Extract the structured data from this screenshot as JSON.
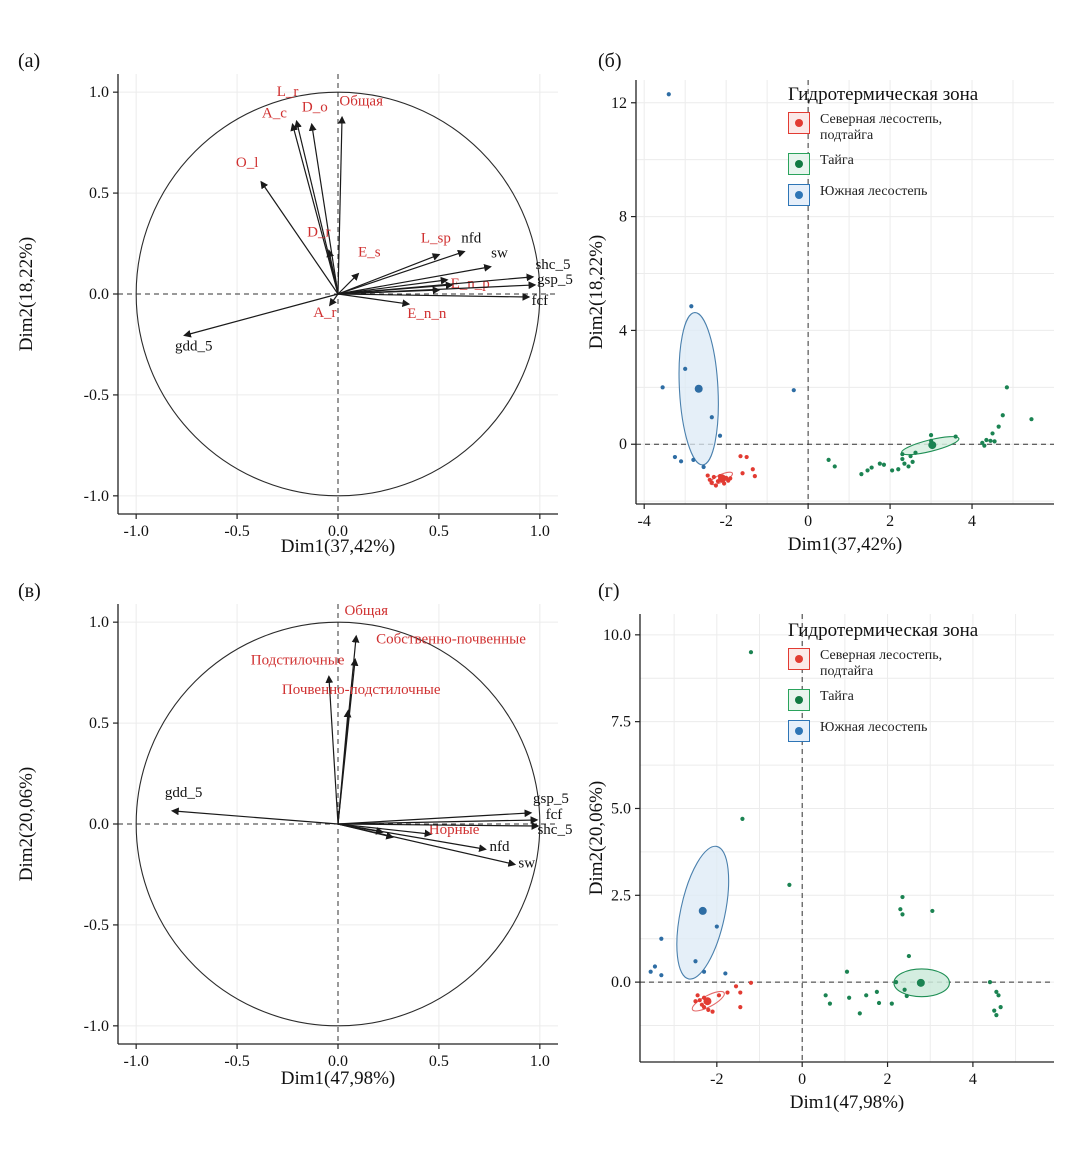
{
  "figure": {
    "background": "#ffffff",
    "legend": {
      "title": "Гидротермическая зона",
      "items": [
        {
          "label": "Северная лесостепь, подтайга",
          "stroke": "#e23b32",
          "fill": "#fbe9e8",
          "dot": "#e23b32"
        },
        {
          "label": "Тайга",
          "stroke": "#2aa35c",
          "fill": "#e8f5ee",
          "dot": "#117a42"
        },
        {
          "label": "Южная лесостепь",
          "stroke": "#2e75b6",
          "fill": "#e6effa",
          "dot": "#2e75b6"
        }
      ]
    },
    "colors": {
      "arrow": "#1a1a1a",
      "variable_label_red": "#d03131",
      "variable_label_black": "#111111",
      "grid": "#ececec",
      "axis": "#222222"
    }
  },
  "chart_data": [
    {
      "id": "a",
      "tag": "(а)",
      "type": "pca_biplot_circle",
      "xlabel": "Dim1(37,42%)",
      "ylabel": "Dim2(18,22%)",
      "xlim": [
        -1.09,
        1.09
      ],
      "ylim": [
        -1.09,
        1.09
      ],
      "xticks": [
        {
          "v": -1.0,
          "t": "-1.0"
        },
        {
          "v": -0.5,
          "t": "-0.5"
        },
        {
          "v": 0.0,
          "t": "0.0"
        },
        {
          "v": 0.5,
          "t": "0.5"
        },
        {
          "v": 1.0,
          "t": "1.0"
        }
      ],
      "yticks": [
        {
          "v": -1.0,
          "t": "-1.0"
        },
        {
          "v": -0.5,
          "t": "-0.5"
        },
        {
          "v": 0.0,
          "t": "0.0"
        },
        {
          "v": 0.5,
          "t": "0.5"
        },
        {
          "v": 1.0,
          "t": "1.0"
        }
      ],
      "grid_x": [
        -1.0,
        -0.5,
        0.5,
        1.0
      ],
      "grid_y": [
        -1.0,
        -0.5,
        0.5,
        1.0
      ],
      "arrows": [
        {
          "label": "L_r",
          "x": -0.205,
          "y": 0.855,
          "lx": -0.25,
          "ly": 0.98,
          "red": true
        },
        {
          "label": "A_c",
          "x": -0.225,
          "y": 0.84,
          "lx": -0.315,
          "ly": 0.875,
          "red": true
        },
        {
          "label": "D_o",
          "x": -0.13,
          "y": 0.84,
          "lx": -0.115,
          "ly": 0.905,
          "red": true
        },
        {
          "label": "Общая",
          "x": 0.02,
          "y": 0.875,
          "lx": 0.115,
          "ly": 0.935,
          "red": true
        },
        {
          "label": "O_l",
          "x": -0.38,
          "y": 0.555,
          "lx": -0.45,
          "ly": 0.63,
          "red": true
        },
        {
          "label": "D_r",
          "x": -0.045,
          "y": 0.215,
          "lx": -0.095,
          "ly": 0.285,
          "red": true
        },
        {
          "label": "E_s",
          "x": 0.1,
          "y": 0.1,
          "lx": 0.155,
          "ly": 0.185,
          "red": true
        },
        {
          "label": "A_r",
          "x": -0.04,
          "y": -0.055,
          "lx": -0.065,
          "ly": -0.115,
          "red": true
        },
        {
          "label": "L_sp",
          "x": 0.5,
          "y": 0.195,
          "lx": 0.485,
          "ly": 0.255,
          "red": true
        },
        {
          "label": "E_n_p",
          "x": 0.565,
          "y": 0.045,
          "lx": 0.655,
          "ly": 0.03,
          "red": true
        },
        {
          "label": "E_n_n",
          "x": 0.35,
          "y": -0.05,
          "lx": 0.44,
          "ly": -0.12,
          "red": true
        },
        {
          "label": "",
          "x": 0.54,
          "y": 0.07,
          "red": false
        },
        {
          "label": "",
          "x": 0.5,
          "y": 0.02,
          "red": false
        },
        {
          "label": "nfd",
          "x": 0.625,
          "y": 0.21,
          "lx": 0.66,
          "ly": 0.255,
          "red": false
        },
        {
          "label": "sw",
          "x": 0.755,
          "y": 0.135,
          "lx": 0.8,
          "ly": 0.18,
          "red": false
        },
        {
          "label": "shc_5",
          "x": 0.965,
          "y": 0.085,
          "lx": 1.065,
          "ly": 0.125,
          "red": false
        },
        {
          "label": "gsp_5",
          "x": 0.975,
          "y": 0.045,
          "lx": 1.075,
          "ly": 0.05,
          "red": false
        },
        {
          "label": "fcf",
          "x": 0.945,
          "y": -0.015,
          "lx": 1.0,
          "ly": -0.055,
          "red": false
        },
        {
          "label": "gdd_5",
          "x": -0.76,
          "y": -0.205,
          "lx": -0.715,
          "ly": -0.28,
          "red": false
        }
      ]
    },
    {
      "id": "b",
      "tag": "(б)",
      "type": "scatter_groups",
      "xlabel": "Dim1(37,42%)",
      "ylabel": "Dim2(18,22%)",
      "xlim": [
        -4.2,
        6.0
      ],
      "ylim": [
        -2.1,
        12.8
      ],
      "xticks": [
        {
          "v": -4,
          "t": "-4"
        },
        {
          "v": -2,
          "t": "-2"
        },
        {
          "v": 0,
          "t": "0"
        },
        {
          "v": 2,
          "t": "2"
        },
        {
          "v": 4,
          "t": "4"
        }
      ],
      "yticks": [
        {
          "v": 0,
          "t": "0"
        },
        {
          "v": 4,
          "t": "4"
        },
        {
          "v": 8,
          "t": "8"
        },
        {
          "v": 12,
          "t": "12"
        }
      ],
      "grid_x": [
        -4,
        -3,
        -2,
        -1,
        0,
        1,
        2,
        3,
        4,
        5
      ],
      "grid_y": [
        -2,
        0,
        2,
        4,
        6,
        8,
        10,
        12
      ],
      "groups": [
        {
          "name": "Южная лесостепь",
          "color": "#2e6da4",
          "ellipse": {
            "cx": -2.67,
            "cy": 1.95,
            "rx": 0.47,
            "ry": 2.68,
            "angle": 3,
            "stroke": "#4a80ad",
            "fill": "#dce9f5",
            "opacity": 0.75
          },
          "center": [
            -2.67,
            1.95
          ],
          "points": [
            [
              -3.4,
              12.3
            ],
            [
              -3.55,
              2.0
            ],
            [
              -3.0,
              2.65
            ],
            [
              -2.85,
              4.85
            ],
            [
              -2.35,
              0.95
            ],
            [
              -2.15,
              0.3
            ],
            [
              -3.25,
              -0.45
            ],
            [
              -3.1,
              -0.6
            ],
            [
              -2.8,
              -0.55
            ],
            [
              -2.55,
              -0.8
            ],
            [
              -0.35,
              1.9
            ]
          ]
        },
        {
          "name": "Северная лесостепь, подтайга",
          "color": "#e23b32",
          "ellipse": {
            "cx": -2.12,
            "cy": -1.2,
            "rx": 0.3,
            "ry": 0.13,
            "angle": 25,
            "stroke": "#e46a6a",
            "fill": "none",
            "opacity": 1
          },
          "center": [
            -2.1,
            -1.2
          ],
          "points": [
            [
              -2.45,
              -1.1
            ],
            [
              -2.4,
              -1.25
            ],
            [
              -2.35,
              -1.35
            ],
            [
              -2.3,
              -1.15
            ],
            [
              -2.25,
              -1.45
            ],
            [
              -2.2,
              -1.3
            ],
            [
              -2.15,
              -1.12
            ],
            [
              -2.05,
              -1.38
            ],
            [
              -2.0,
              -1.18
            ],
            [
              -1.95,
              -1.28
            ],
            [
              -1.9,
              -1.2
            ],
            [
              -1.65,
              -0.42
            ],
            [
              -1.5,
              -0.45
            ],
            [
              -1.6,
              -1.02
            ],
            [
              -1.35,
              -0.88
            ],
            [
              -1.3,
              -1.12
            ]
          ]
        },
        {
          "name": "Тайга",
          "color": "#1b8352",
          "ellipse": {
            "cx": 2.98,
            "cy": -0.05,
            "rx": 0.72,
            "ry": 0.2,
            "angle": 14,
            "stroke": "#1f8f55",
            "fill": "#d7efe1",
            "opacity": 0.85
          },
          "center": [
            3.03,
            -0.03
          ],
          "points": [
            [
              0.5,
              -0.55
            ],
            [
              0.65,
              -0.78
            ],
            [
              1.3,
              -1.05
            ],
            [
              1.45,
              -0.92
            ],
            [
              1.55,
              -0.82
            ],
            [
              1.75,
              -0.68
            ],
            [
              1.85,
              -0.72
            ],
            [
              2.05,
              -0.92
            ],
            [
              2.2,
              -0.88
            ],
            [
              2.3,
              -0.52
            ],
            [
              2.35,
              -0.68
            ],
            [
              2.45,
              -0.78
            ],
            [
              2.55,
              -0.62
            ],
            [
              2.3,
              -0.35
            ],
            [
              2.5,
              -0.42
            ],
            [
              2.62,
              -0.3
            ],
            [
              3.0,
              0.32
            ],
            [
              3.0,
              0.12
            ],
            [
              3.6,
              0.27
            ],
            [
              4.25,
              0.05
            ],
            [
              4.3,
              -0.05
            ],
            [
              4.35,
              0.15
            ],
            [
              4.45,
              0.12
            ],
            [
              4.55,
              0.1
            ],
            [
              4.5,
              0.38
            ],
            [
              4.65,
              0.62
            ],
            [
              4.75,
              1.02
            ],
            [
              4.85,
              2.0
            ],
            [
              5.45,
              0.88
            ]
          ]
        }
      ]
    },
    {
      "id": "v",
      "tag": "(в)",
      "type": "pca_biplot_circle",
      "xlabel": "Dim1(47,98%)",
      "ylabel": "Dim2(20,06%)",
      "xlim": [
        -1.09,
        1.09
      ],
      "ylim": [
        -1.09,
        1.09
      ],
      "xticks": [
        {
          "v": -1.0,
          "t": "-1.0"
        },
        {
          "v": -0.5,
          "t": "-0.5"
        },
        {
          "v": 0.0,
          "t": "0.0"
        },
        {
          "v": 0.5,
          "t": "0.5"
        },
        {
          "v": 1.0,
          "t": "1.0"
        }
      ],
      "yticks": [
        {
          "v": -1.0,
          "t": "-1.0"
        },
        {
          "v": -0.5,
          "t": "-0.5"
        },
        {
          "v": 0.0,
          "t": "0.0"
        },
        {
          "v": 0.5,
          "t": "0.5"
        },
        {
          "v": 1.0,
          "t": "1.0"
        }
      ],
      "grid_x": [
        -1.0,
        -0.5,
        0.5,
        1.0
      ],
      "grid_y": [
        -1.0,
        -0.5,
        0.5,
        1.0
      ],
      "arrows": [
        {
          "label": "Общая",
          "x": 0.09,
          "y": 0.93,
          "lx": 0.14,
          "ly": 1.035,
          "red": true
        },
        {
          "label": "Собственно-почвенные",
          "x": 0.085,
          "y": 0.815,
          "lx": 0.56,
          "ly": 0.895,
          "red": true
        },
        {
          "label": "Подстилочные",
          "x": -0.045,
          "y": 0.73,
          "lx": -0.2,
          "ly": 0.79,
          "red": true
        },
        {
          "label": "Почвенно-подстилочные",
          "x": 0.05,
          "y": 0.56,
          "lx": 0.115,
          "ly": 0.645,
          "red": true
        },
        {
          "label": "Норные",
          "x": 0.46,
          "y": -0.05,
          "lx": 0.575,
          "ly": -0.05,
          "red": true
        },
        {
          "label": "",
          "x": 0.22,
          "y": -0.04,
          "red": false
        },
        {
          "label": "",
          "x": 0.27,
          "y": -0.065,
          "red": false
        },
        {
          "label": "gdd_5",
          "x": -0.82,
          "y": 0.065,
          "lx": -0.765,
          "ly": 0.135,
          "red": false
        },
        {
          "label": "gsp_5",
          "x": 0.955,
          "y": 0.055,
          "lx": 1.055,
          "ly": 0.105,
          "red": false
        },
        {
          "label": "fcf",
          "x": 0.985,
          "y": 0.02,
          "lx": 1.07,
          "ly": 0.025,
          "red": false
        },
        {
          "label": "shc_5",
          "x": 0.99,
          "y": -0.01,
          "lx": 1.075,
          "ly": -0.05,
          "red": false
        },
        {
          "label": "nfd",
          "x": 0.73,
          "y": -0.125,
          "lx": 0.8,
          "ly": -0.135,
          "red": false
        },
        {
          "label": "sw",
          "x": 0.875,
          "y": -0.2,
          "lx": 0.935,
          "ly": -0.215,
          "red": false
        }
      ]
    },
    {
      "id": "g",
      "tag": "(г)",
      "type": "scatter_groups",
      "xlabel": "Dim1(47,98%)",
      "ylabel": "Dim2(20,06%)",
      "xlim": [
        -3.8,
        5.9
      ],
      "ylim": [
        -2.3,
        10.6
      ],
      "xticks": [
        {
          "v": -2,
          "t": "-2"
        },
        {
          "v": 0,
          "t": "0"
        },
        {
          "v": 2,
          "t": "2"
        },
        {
          "v": 4,
          "t": "4"
        }
      ],
      "yticks": [
        {
          "v": 0,
          "t": "0.0"
        },
        {
          "v": 2.5,
          "t": "2.5"
        },
        {
          "v": 5,
          "t": "5.0"
        },
        {
          "v": 7.5,
          "t": "7.5"
        },
        {
          "v": 10,
          "t": "10.0"
        }
      ],
      "grid_x": [
        -3,
        -2,
        -1,
        0,
        1,
        2,
        3,
        4,
        5
      ],
      "grid_y": [
        -1.25,
        0,
        1.25,
        2.5,
        3.75,
        5,
        6.25,
        7.5,
        8.75,
        10
      ],
      "groups": [
        {
          "name": "Южная лесостепь",
          "color": "#2e6da4",
          "ellipse": {
            "cx": -2.33,
            "cy": 2.0,
            "rx": 0.52,
            "ry": 1.95,
            "angle": -12,
            "stroke": "#4a80ad",
            "fill": "#dce9f5",
            "opacity": 0.75
          },
          "center": [
            -2.33,
            2.05
          ],
          "points": [
            [
              -2.0,
              1.6
            ],
            [
              -3.3,
              1.25
            ],
            [
              -3.45,
              0.45
            ],
            [
              -3.55,
              0.3
            ],
            [
              -3.3,
              0.2
            ],
            [
              -2.5,
              0.6
            ],
            [
              -2.3,
              0.3
            ],
            [
              -1.8,
              0.25
            ]
          ]
        },
        {
          "name": "Северная лесостепь, подтайга",
          "color": "#e23b32",
          "ellipse": {
            "cx": -2.2,
            "cy": -0.55,
            "rx": 0.42,
            "ry": 0.16,
            "angle": 28,
            "stroke": "#e46a6a",
            "fill": "none",
            "opacity": 1
          },
          "center": [
            -2.22,
            -0.55
          ],
          "points": [
            [
              -2.5,
              -0.55
            ],
            [
              -2.45,
              -0.38
            ],
            [
              -2.4,
              -0.52
            ],
            [
              -2.35,
              -0.65
            ],
            [
              -2.3,
              -0.72
            ],
            [
              -2.3,
              -0.45
            ],
            [
              -2.2,
              -0.8
            ],
            [
              -2.1,
              -0.85
            ],
            [
              -1.95,
              -0.38
            ],
            [
              -1.75,
              -0.3
            ],
            [
              -1.45,
              -0.72
            ],
            [
              -1.55,
              -0.12
            ],
            [
              -1.45,
              -0.3
            ],
            [
              -1.2,
              -0.02
            ]
          ]
        },
        {
          "name": "Тайга",
          "color": "#1b8352",
          "ellipse": {
            "cx": 2.8,
            "cy": -0.02,
            "rx": 0.65,
            "ry": 0.4,
            "angle": 0,
            "stroke": "#1f8f55",
            "fill": "#cdeadb",
            "opacity": 0.85
          },
          "center": [
            2.78,
            -0.02
          ],
          "points": [
            [
              -1.2,
              9.5
            ],
            [
              -1.4,
              4.7
            ],
            [
              -0.3,
              2.8
            ],
            [
              0.55,
              -0.38
            ],
            [
              0.65,
              -0.62
            ],
            [
              1.05,
              0.3
            ],
            [
              1.1,
              -0.45
            ],
            [
              1.35,
              -0.9
            ],
            [
              1.5,
              -0.38
            ],
            [
              1.75,
              -0.28
            ],
            [
              1.8,
              -0.6
            ],
            [
              2.1,
              -0.62
            ],
            [
              2.2,
              0.0
            ],
            [
              2.35,
              2.45
            ],
            [
              2.3,
              2.1
            ],
            [
              2.35,
              1.95
            ],
            [
              2.5,
              0.75
            ],
            [
              2.4,
              -0.22
            ],
            [
              2.45,
              -0.4
            ],
            [
              3.05,
              2.05
            ],
            [
              4.4,
              0.0
            ],
            [
              4.55,
              -0.28
            ],
            [
              4.6,
              -0.38
            ],
            [
              4.5,
              -0.82
            ],
            [
              4.55,
              -0.95
            ],
            [
              4.65,
              -0.72
            ]
          ]
        }
      ]
    }
  ]
}
